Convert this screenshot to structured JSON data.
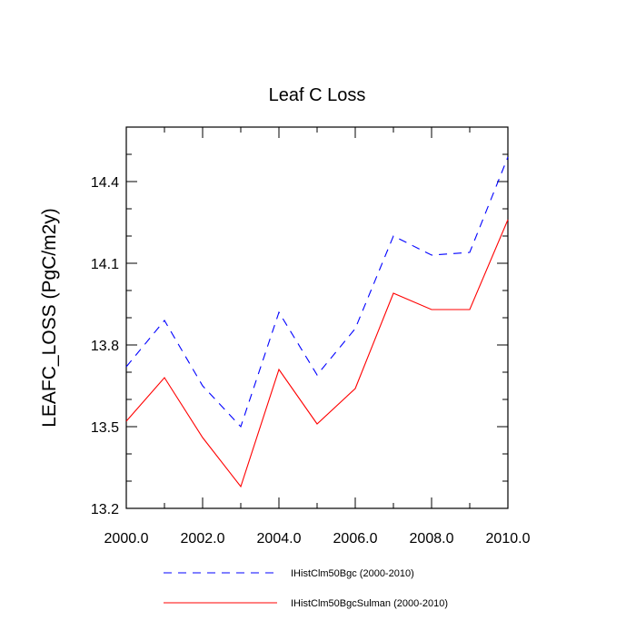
{
  "chart_data": {
    "type": "line",
    "title": "Leaf C Loss",
    "xlabel": "",
    "ylabel": "LEAFC_LOSS  (PgC/m2y)",
    "xlim": [
      2000,
      2010
    ],
    "ylim": [
      13.2,
      14.6
    ],
    "x_ticks": [
      2000,
      2002,
      2004,
      2006,
      2008,
      2010
    ],
    "x_tick_labels": [
      "2000.0",
      "2002.0",
      "2004.0",
      "2006.0",
      "2008.0",
      "2010.0"
    ],
    "y_ticks": [
      13.2,
      13.5,
      13.8,
      14.1,
      14.4
    ],
    "y_tick_labels": [
      "13.2",
      "13.5",
      "13.8",
      "14.1",
      "14.4"
    ],
    "grid": false,
    "legend_position": "bottom",
    "x": [
      2000,
      2001,
      2002,
      2003,
      2004,
      2005,
      2006,
      2007,
      2008,
      2009,
      2010
    ],
    "series": [
      {
        "name": "IHistClm50Bgc (2000-2010)",
        "color": "#0000ff",
        "dash": "dashed",
        "values": [
          13.72,
          13.89,
          13.65,
          13.5,
          13.92,
          13.69,
          13.86,
          14.2,
          14.13,
          14.14,
          14.49
        ]
      },
      {
        "name": "IHistClm50BgcSulman (2000-2010)",
        "color": "#ff0000",
        "dash": "solid",
        "values": [
          13.52,
          13.68,
          13.46,
          13.28,
          13.71,
          13.51,
          13.64,
          13.99,
          13.93,
          13.93,
          14.26
        ]
      }
    ]
  }
}
